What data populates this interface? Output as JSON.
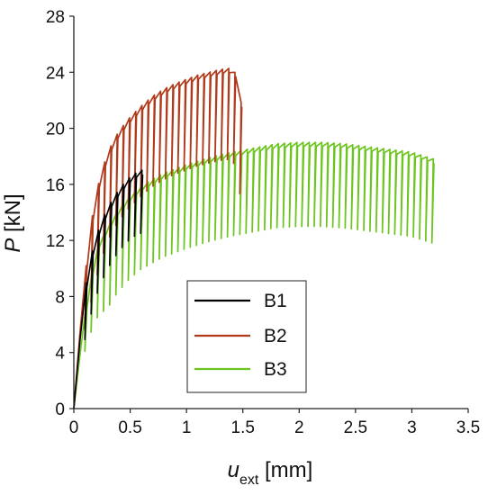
{
  "chart_data": {
    "type": "line",
    "xlabel_main": "u",
    "xlabel_sub": "ext",
    "xlabel_unit": " [mm]",
    "ylabel_main": "P",
    "ylabel_unit": " [kN]",
    "xlim": [
      0,
      3.5
    ],
    "ylim": [
      0,
      28
    ],
    "xticks": [
      "0",
      "0.5",
      "1",
      "1.5",
      "2",
      "2.5",
      "3",
      "3.5"
    ],
    "yticks": [
      "0",
      "4",
      "8",
      "12",
      "16",
      "20",
      "24",
      "28"
    ],
    "grid": false,
    "legend_position": "center",
    "series": [
      {
        "name": "B1",
        "color": "#000000",
        "envelope": [
          [
            0,
            0
          ],
          [
            0.05,
            4.5
          ],
          [
            0.1,
            8.5
          ],
          [
            0.15,
            10.8
          ],
          [
            0.2,
            12.3
          ],
          [
            0.25,
            13.4
          ],
          [
            0.3,
            14.3
          ],
          [
            0.35,
            15.0
          ],
          [
            0.4,
            15.6
          ],
          [
            0.45,
            16.1
          ],
          [
            0.5,
            16.5
          ],
          [
            0.55,
            16.8
          ],
          [
            0.6,
            17.0
          ],
          [
            0.65,
            17.1
          ]
        ],
        "unload_drop": 4.5
      },
      {
        "name": "B2",
        "color": "#b03a1a",
        "envelope": [
          [
            0,
            0
          ],
          [
            0.05,
            5.0
          ],
          [
            0.1,
            9.5
          ],
          [
            0.15,
            13.0
          ],
          [
            0.2,
            15.5
          ],
          [
            0.3,
            18.3
          ],
          [
            0.4,
            19.8
          ],
          [
            0.5,
            20.8
          ],
          [
            0.6,
            21.6
          ],
          [
            0.7,
            22.3
          ],
          [
            0.8,
            22.8
          ],
          [
            0.9,
            23.2
          ],
          [
            1.0,
            23.5
          ],
          [
            1.1,
            23.8
          ],
          [
            1.2,
            24.0
          ],
          [
            1.3,
            24.2
          ],
          [
            1.4,
            24.3
          ],
          [
            1.45,
            23.8
          ],
          [
            1.5,
            21.0
          ]
        ],
        "unload_drop": 6.5
      },
      {
        "name": "B3",
        "color": "#6cc51e",
        "envelope": [
          [
            0,
            0
          ],
          [
            0.1,
            7.0
          ],
          [
            0.2,
            11.5
          ],
          [
            0.3,
            13.0
          ],
          [
            0.4,
            14.3
          ],
          [
            0.5,
            15.2
          ],
          [
            0.6,
            15.9
          ],
          [
            0.8,
            16.8
          ],
          [
            1.0,
            17.4
          ],
          [
            1.2,
            17.9
          ],
          [
            1.4,
            18.3
          ],
          [
            1.6,
            18.6
          ],
          [
            1.8,
            18.9
          ],
          [
            2.0,
            19.0
          ],
          [
            2.2,
            19.0
          ],
          [
            2.4,
            18.9
          ],
          [
            2.6,
            18.7
          ],
          [
            2.8,
            18.5
          ],
          [
            3.0,
            18.3
          ],
          [
            3.2,
            17.8
          ]
        ],
        "unload_drop": 6.0
      }
    ]
  }
}
